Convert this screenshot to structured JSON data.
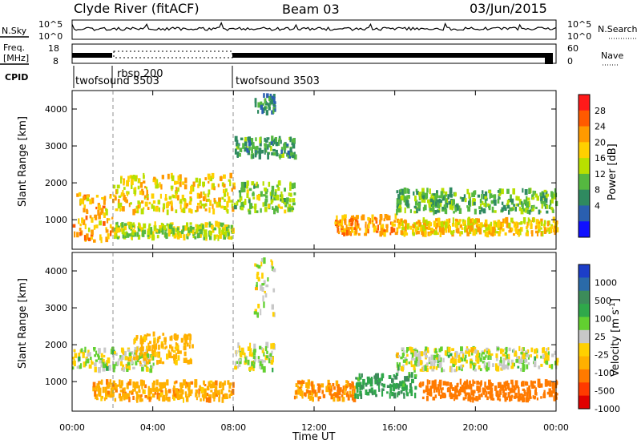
{
  "header": {
    "title": "Clyde River (fitACF)",
    "beam": "Beam 03",
    "date": "03/Jun/2015"
  },
  "strip_panels": {
    "nsky_label": "N.Sky",
    "nsky_ticks": [
      "10^5",
      "10^0"
    ],
    "nsearch_ticks": [
      "10^5",
      "10^0"
    ],
    "nsearch_label": "N.Search",
    "freq_label": [
      "Freq.",
      "[MHz]"
    ],
    "freq_ticks": [
      "18",
      "8"
    ],
    "nave_ticks": [
      "60",
      "0"
    ],
    "nave_label": "Nave",
    "cpid_label": "CPID",
    "cpid_segments": [
      {
        "name": "twofsound 3503",
        "start_hour": 0.0
      },
      {
        "name": "rbsp 200",
        "start_hour": 2.0
      },
      {
        "name": "twofsound 3503",
        "start_hour": 8.0
      }
    ]
  },
  "power_colorbar": {
    "label": "Power [dB]",
    "ticks": [
      "28",
      "24",
      "20",
      "16",
      "12",
      "8",
      "4"
    ],
    "colors": [
      "#ff1a1a",
      "#ff5a00",
      "#ff9a00",
      "#ffd000",
      "#b8e000",
      "#55b840",
      "#2f8a60",
      "#2a5fb0",
      "#1010ff"
    ]
  },
  "velocity_colorbar": {
    "label": "Velocity [m s^-1]",
    "ticks": [
      "1000",
      "500",
      "100",
      "25",
      "-25",
      "-100",
      "-500",
      "-1000"
    ],
    "colors": [
      "#1c3ec8",
      "#2a6aa8",
      "#3c8c5a",
      "#2fa84a",
      "#62d030",
      "#c8c8c8",
      "#ffd000",
      "#ffb000",
      "#ff7a00",
      "#ff3a00",
      "#e00000"
    ]
  },
  "chart_data": [
    {
      "type": "line",
      "title": "",
      "xlabel": "",
      "ylabel": "N.Sky",
      "series": [
        {
          "name": "N.Sky",
          "x": [
            0,
            2,
            4,
            6,
            8,
            10,
            12,
            14,
            16,
            18,
            20,
            22,
            24
          ],
          "values": [
            10000,
            12000,
            11000,
            10500,
            11500,
            12000,
            13000,
            11000,
            10500,
            11000,
            11500,
            12000,
            10000
          ]
        }
      ],
      "ylim": [
        1,
        100000
      ],
      "log_scale": true
    },
    {
      "type": "line",
      "title": "",
      "ylabel": "Freq. [MHz]",
      "series": [
        {
          "name": "Freq.",
          "x": [
            0,
            2,
            8,
            24
          ],
          "values": [
            10,
            16,
            10,
            10
          ]
        }
      ],
      "ylim": [
        8,
        18
      ]
    },
    {
      "type": "heatmap",
      "title": "",
      "xlabel": "",
      "ylabel": "Slant Range [km]",
      "x_ticks": [
        "00:00",
        "04:00",
        "08:00",
        "12:00",
        "16:00",
        "20:00",
        "00:00"
      ],
      "y_ticks": [
        "1000",
        "2000",
        "3000",
        "4000"
      ],
      "xlim": [
        0,
        24
      ],
      "ylim": [
        200,
        4500
      ],
      "colorbar": "Power [dB]",
      "bands": [
        {
          "hours": [
            0,
            2
          ],
          "range_km": [
            400,
            1700
          ],
          "level_db": 22
        },
        {
          "hours": [
            2,
            8
          ],
          "range_km": [
            1200,
            2200
          ],
          "level_db": 20
        },
        {
          "hours": [
            2,
            8
          ],
          "range_km": [
            500,
            900
          ],
          "level_db": 16
        },
        {
          "hours": [
            8,
            11
          ],
          "range_km": [
            1200,
            2000
          ],
          "level_db": 14
        },
        {
          "hours": [
            8,
            11
          ],
          "range_km": [
            2700,
            3200
          ],
          "level_db": 10
        },
        {
          "hours": [
            9,
            10
          ],
          "range_km": [
            3800,
            4400
          ],
          "level_db": 8
        },
        {
          "hours": [
            13,
            16
          ],
          "range_km": [
            600,
            1100
          ],
          "level_db": 24
        },
        {
          "hours": [
            16,
            24
          ],
          "range_km": [
            1200,
            1800
          ],
          "level_db": 12
        },
        {
          "hours": [
            16,
            24
          ],
          "range_km": [
            600,
            1000
          ],
          "level_db": 20
        }
      ]
    },
    {
      "type": "heatmap",
      "title": "",
      "xlabel": "Time UT",
      "ylabel": "Slant Range [km]",
      "x_ticks": [
        "00:00",
        "04:00",
        "08:00",
        "12:00",
        "16:00",
        "20:00",
        "00:00"
      ],
      "y_ticks": [
        "1000",
        "2000",
        "3000",
        "4000"
      ],
      "xlim": [
        0,
        24
      ],
      "ylim": [
        200,
        4500
      ],
      "colorbar": "Velocity [m s^-1]",
      "bands": [
        {
          "hours": [
            0,
            4
          ],
          "range_km": [
            1300,
            1900
          ],
          "velocity": 0
        },
        {
          "hours": [
            1,
            8
          ],
          "range_km": [
            500,
            1000
          ],
          "velocity": -150
        },
        {
          "hours": [
            3,
            6
          ],
          "range_km": [
            1500,
            2300
          ],
          "velocity": -120
        },
        {
          "hours": [
            8,
            10
          ],
          "range_km": [
            1300,
            2000
          ],
          "velocity": 0
        },
        {
          "hours": [
            9,
            10
          ],
          "range_km": [
            2800,
            4300
          ],
          "velocity": 0
        },
        {
          "hours": [
            11,
            14
          ],
          "range_km": [
            500,
            1000
          ],
          "velocity": -200
        },
        {
          "hours": [
            14,
            17
          ],
          "range_km": [
            600,
            1200
          ],
          "velocity": 150
        },
        {
          "hours": [
            17,
            24
          ],
          "range_km": [
            500,
            1000
          ],
          "velocity": -300
        },
        {
          "hours": [
            16,
            24
          ],
          "range_km": [
            1300,
            1900
          ],
          "velocity": 0
        }
      ]
    }
  ]
}
